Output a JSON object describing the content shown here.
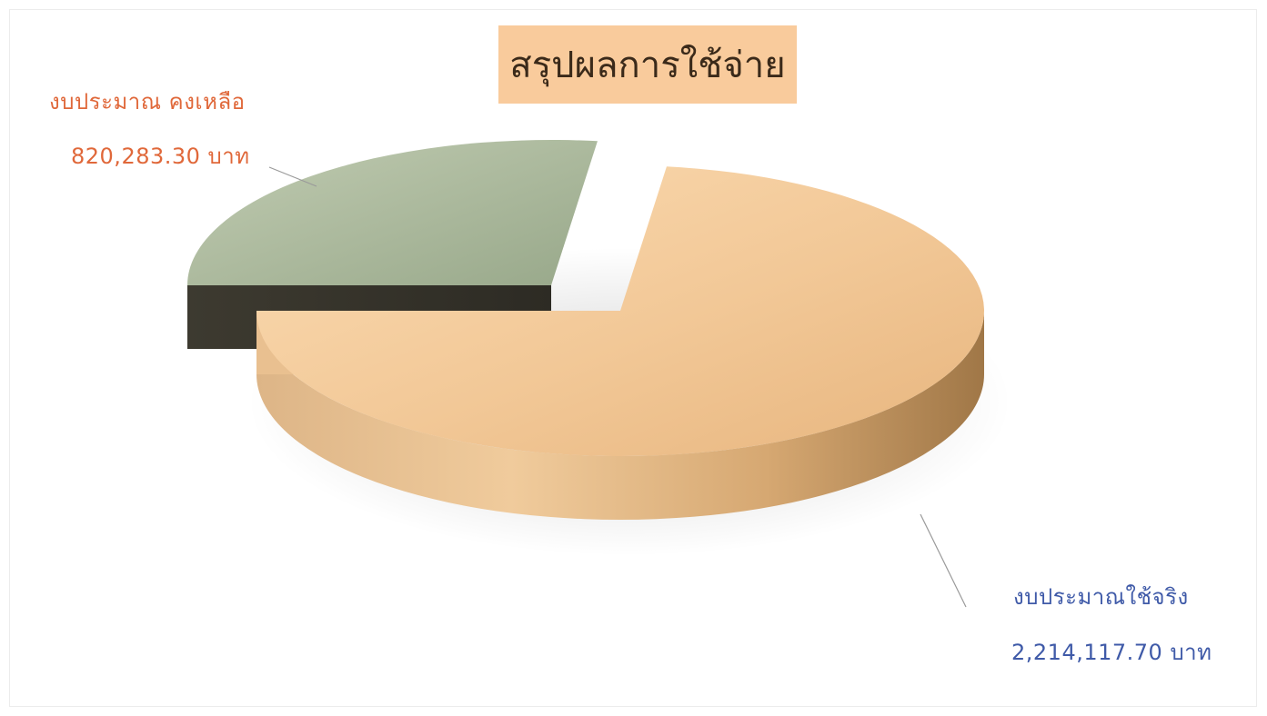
{
  "chart_data": {
    "type": "pie",
    "title": "สรุปผลการใช้จ่าย",
    "slices": [
      {
        "name": "งบประมาณใช้จริง",
        "value": 2214117.7,
        "value_label": "2,214,117.70 บาท",
        "color": "#f2c897"
      },
      {
        "name": "งบประมาณ คงเหลือ",
        "value": 820283.3,
        "value_label": "820,283.30 บาท",
        "color": "#a7b59a",
        "exploded": true
      }
    ],
    "legend": "none",
    "style": "3d"
  },
  "colors": {
    "title_box": "#f9cb9c",
    "remaining_label": "#e0683a",
    "used_label": "#3f5aa8"
  }
}
